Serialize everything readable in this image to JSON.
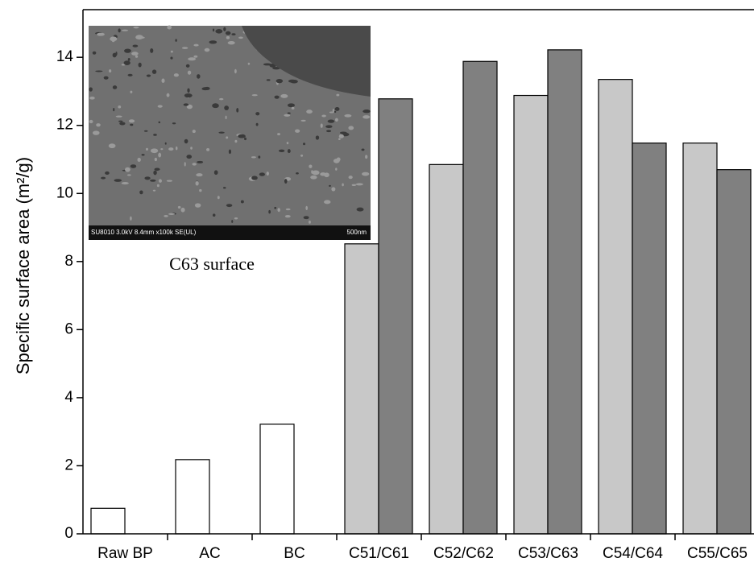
{
  "chart_data": {
    "type": "bar",
    "y_label": "Specific surface area (m²/g)",
    "categories": [
      "Raw BP",
      "AC",
      "BC",
      "C51/C61",
      "C52/C62",
      "C53/C63",
      "C54/C64",
      "C55/C65"
    ],
    "series": [
      {
        "colors": [
          "#ffffff",
          "#ffffff",
          "#ffffff",
          "#c8c8c8",
          "#c8c8c8",
          "#c8c8c8",
          "#c8c8c8",
          "#c8c8c8"
        ],
        "values": [
          0.75,
          2.18,
          3.22,
          8.52,
          10.85,
          12.88,
          13.35,
          11.48
        ]
      },
      {
        "color": "#808080",
        "values": [
          null,
          null,
          null,
          12.78,
          13.88,
          14.22,
          11.48,
          10.7
        ]
      }
    ],
    "ylim": [
      0,
      15.4
    ],
    "yticks": [
      0,
      2,
      4,
      6,
      8,
      10,
      12,
      14
    ],
    "inset": {
      "info": "SU8010 3.0kV 8.4mm x100k SE(UL)",
      "scale": "500nm",
      "caption": "C63 surface"
    }
  }
}
